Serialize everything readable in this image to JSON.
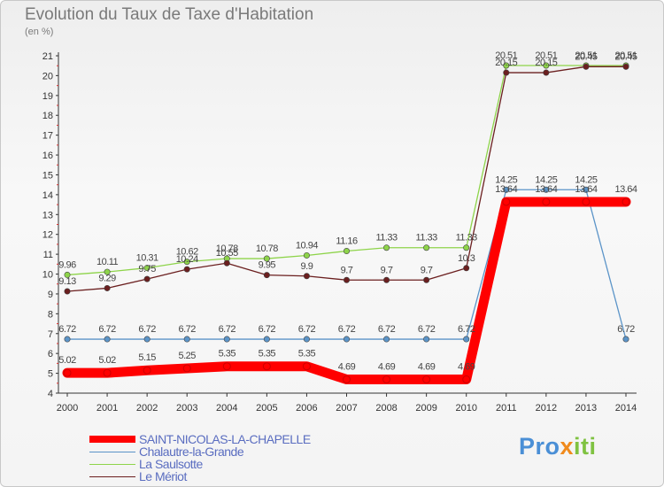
{
  "chart_data": {
    "type": "line",
    "title": "Evolution du Taux de Taxe d'Habitation",
    "subtitle": "(en %)",
    "x": [
      "2000",
      "2001",
      "2002",
      "2003",
      "2004",
      "2005",
      "2006",
      "2007",
      "2008",
      "2009",
      "2010",
      "2011",
      "2012",
      "2013",
      "2014"
    ],
    "ylim": [
      4,
      21
    ],
    "yticks": [
      4,
      5,
      6,
      7,
      8,
      9,
      10,
      11,
      12,
      13,
      14,
      15,
      16,
      17,
      18,
      19,
      20,
      21
    ],
    "grid": false,
    "legend_position": "bottom-left",
    "series": [
      {
        "name": "SAINT-NICOLAS-LA-CHAPELLE",
        "color": "#ff0000",
        "values": [
          5.02,
          5.02,
          5.15,
          5.25,
          5.35,
          5.35,
          5.35,
          4.69,
          4.69,
          4.69,
          4.69,
          13.64,
          13.64,
          13.64,
          13.64
        ],
        "labels": [
          "5.02",
          "5.02",
          "5.15",
          "5.25",
          "5.35",
          "5.35",
          "5.35",
          "4.69",
          "4.69",
          "4.69",
          "4.69",
          "13.64",
          "13.64",
          "13.64",
          "13.64"
        ]
      },
      {
        "name": "Chalautre-la-Grande",
        "color": "#5b94c8",
        "values": [
          6.72,
          6.72,
          6.72,
          6.72,
          6.72,
          6.72,
          6.72,
          6.72,
          6.72,
          6.72,
          6.72,
          14.25,
          14.25,
          14.25,
          6.72
        ],
        "labels": [
          "6.72",
          "6.72",
          "6.72",
          "6.72",
          "6.72",
          "6.72",
          "6.72",
          "6.72",
          "6.72",
          "6.72",
          "6.72",
          "14.25",
          "14.25",
          "14.25",
          "6.72"
        ]
      },
      {
        "name": "La Saulsotte",
        "color": "#8ed44a",
        "values": [
          9.96,
          10.11,
          10.31,
          10.62,
          10.78,
          10.78,
          10.94,
          11.16,
          11.33,
          11.33,
          11.33,
          20.51,
          20.51,
          20.51,
          20.51
        ],
        "labels": [
          "9.96",
          "10.11",
          "10.31",
          "10.62",
          "10.78",
          "10.78",
          "10.94",
          "11.16",
          "11.33",
          "11.33",
          "11.33",
          "20.51",
          "20.51",
          "20.51",
          "20.51"
        ]
      },
      {
        "name": "Le Mériot",
        "color": "#6b1f1f",
        "values": [
          9.13,
          9.29,
          9.75,
          10.24,
          10.55,
          9.95,
          9.9,
          9.7,
          9.7,
          9.7,
          10.3,
          20.15,
          20.15,
          20.45,
          20.45
        ],
        "labels": [
          "9.13",
          "9.29",
          "9.75",
          "10.24",
          "10.55",
          "9.95",
          "9.9",
          "9.7",
          "9.7",
          "9.7",
          "10.3",
          "20.15",
          "20.15",
          "20.45",
          "20.45"
        ]
      }
    ]
  },
  "logo": {
    "text_p": "Pro",
    "text_x": "x",
    "text_i": "iti"
  }
}
